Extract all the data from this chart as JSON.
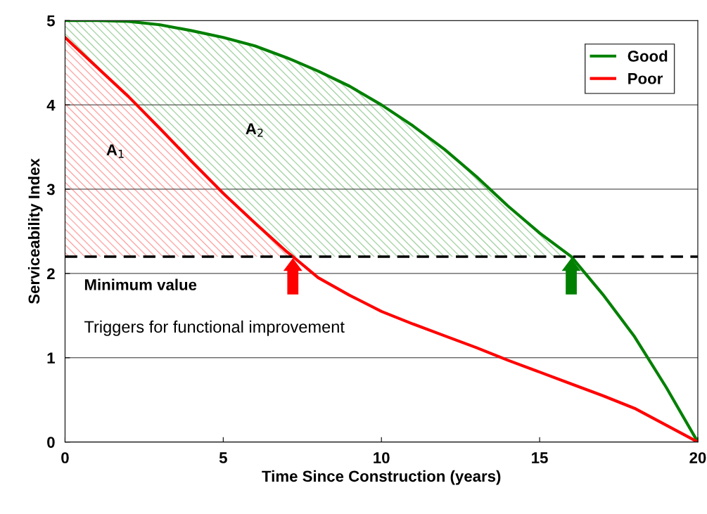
{
  "chart_data": {
    "type": "line",
    "xlabel": "Time Since Construction (years)",
    "ylabel": "Serviceability Index",
    "x": [
      0,
      1,
      2,
      3,
      4,
      5,
      6,
      7,
      7.2,
      8,
      9,
      10,
      11,
      12,
      13,
      14,
      15,
      16,
      17,
      18,
      19,
      20
    ],
    "series": [
      {
        "name": "Good",
        "color": "#008000",
        "values": [
          5.0,
          5.0,
          4.99,
          4.95,
          4.88,
          4.8,
          4.7,
          4.56,
          4.53,
          4.4,
          4.22,
          4.0,
          3.75,
          3.47,
          3.15,
          2.8,
          2.48,
          2.2,
          1.75,
          1.25,
          0.65,
          0
        ],
        "lower": [
          4.8,
          4.45,
          4.1,
          3.72,
          3.33,
          2.95,
          2.6,
          2.26,
          2.2,
          2.2,
          2.2,
          2.2,
          2.2,
          2.2,
          2.2,
          2.2,
          2.2,
          2.2,
          null,
          null,
          null,
          null
        ],
        "upper": [
          5.0,
          5.0,
          4.99,
          4.95,
          4.88,
          4.8,
          4.7,
          4.56,
          4.53,
          4.4,
          4.22,
          4.0,
          3.75,
          3.47,
          3.15,
          2.8,
          2.48,
          2.2,
          null,
          null,
          null,
          null
        ]
      },
      {
        "name": "Poor",
        "color": "#ff0000",
        "values": [
          4.8,
          4.45,
          4.1,
          3.72,
          3.33,
          2.95,
          2.6,
          2.26,
          2.2,
          1.95,
          1.74,
          1.55,
          1.4,
          1.26,
          1.12,
          0.97,
          0.83,
          0.69,
          0.55,
          0.4,
          0.2,
          0
        ],
        "lower": [
          2.2,
          2.2,
          2.2,
          2.2,
          2.2,
          2.2,
          2.2,
          2.2,
          2.2,
          null,
          null,
          null,
          null,
          null,
          null,
          null,
          null,
          null,
          null,
          null,
          null,
          null
        ],
        "upper": [
          4.8,
          4.45,
          4.1,
          3.72,
          3.33,
          2.95,
          2.6,
          2.26,
          2.2,
          null,
          null,
          null,
          null,
          null,
          null,
          null,
          null,
          null,
          null,
          null,
          null,
          null
        ]
      }
    ],
    "xlim": [
      0,
      20
    ],
    "xticks": [
      0,
      5,
      10,
      15,
      20
    ],
    "ylim": [
      0,
      5
    ],
    "yticks": [
      0,
      1,
      2,
      3,
      4,
      5
    ],
    "ref_lines": [
      {
        "axis": "y",
        "value": 2.2,
        "color": "#000000",
        "line_style": "dashed"
      }
    ],
    "annotations": [
      "A$_{1}$",
      "A$_{2}$",
      "Minimum value",
      "Triggers for functional improvement"
    ],
    "grid": "y",
    "legend": "top right",
    "marker": "none",
    "line_style": "solid"
  }
}
